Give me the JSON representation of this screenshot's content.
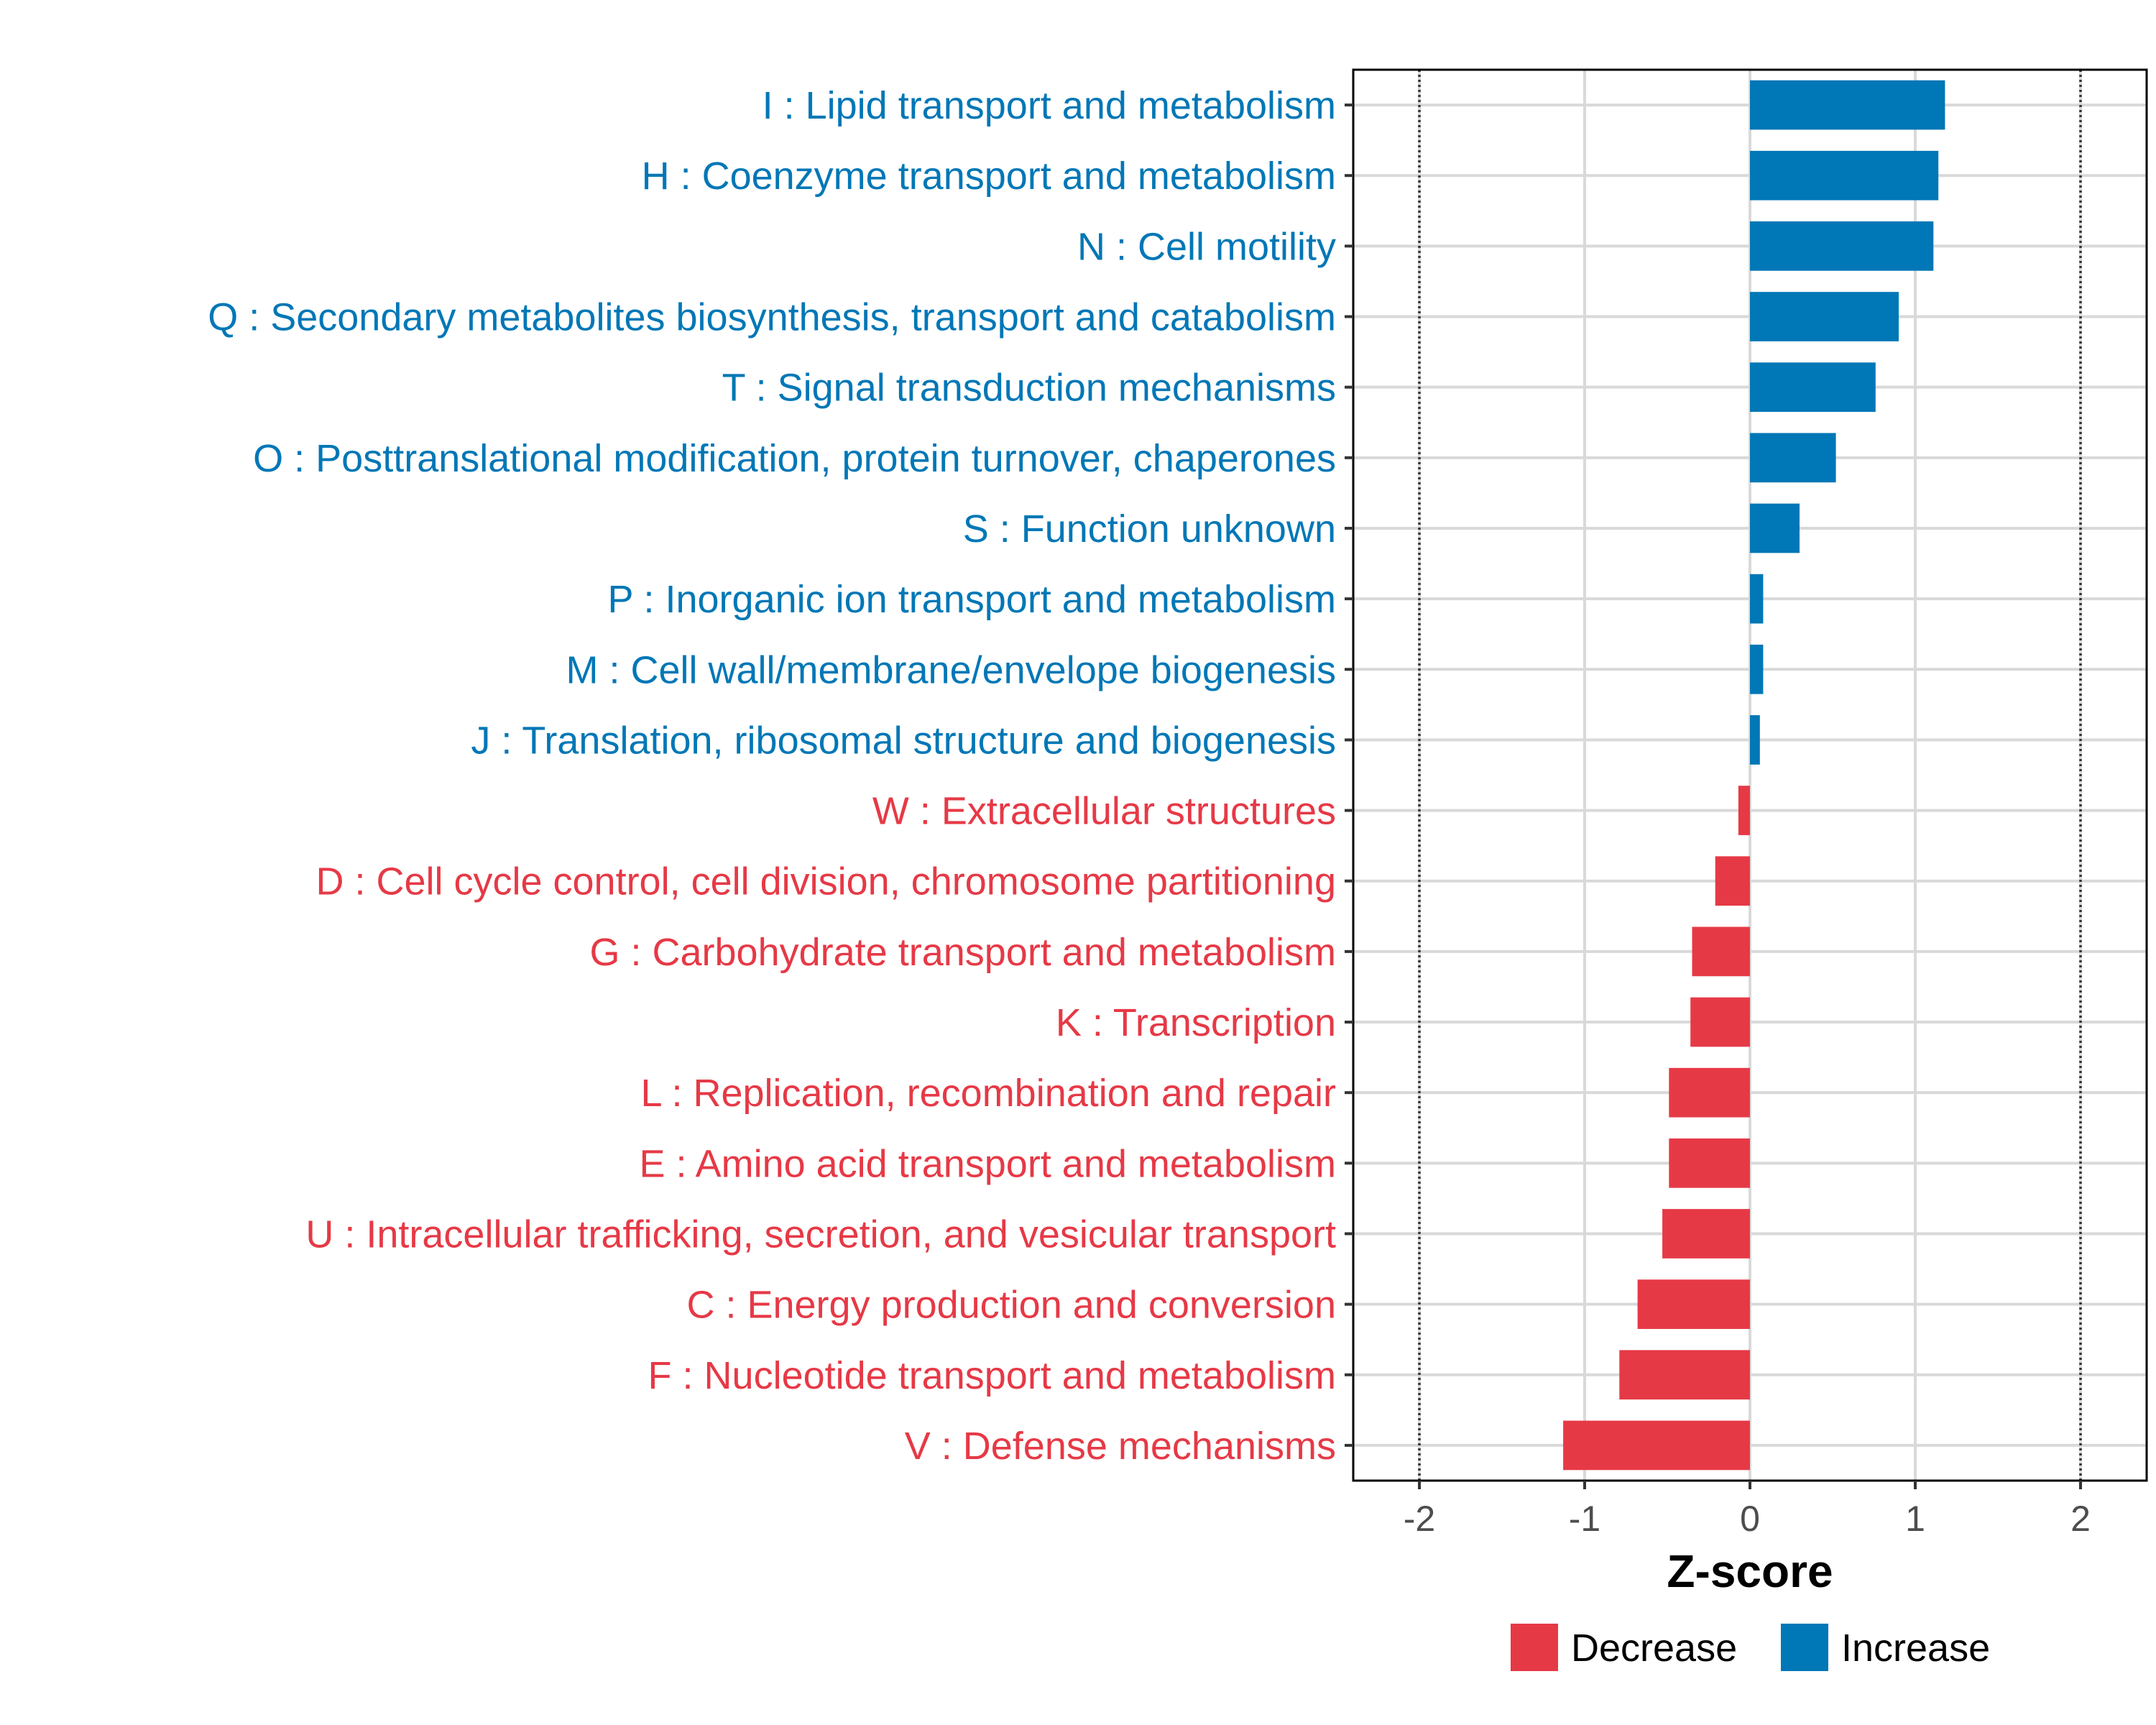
{
  "colors": {
    "decrease": "#e63946",
    "increase": "#0077b6",
    "grid": "#d9d9d9",
    "panel_border": "#000000",
    "tick_text": "#4d4d4d"
  },
  "chart_data": {
    "type": "bar",
    "orientation": "horizontal",
    "xlabel": "Z-score",
    "xlim": [
      -2.4,
      2.4
    ],
    "xticks": [
      -2,
      -1,
      0,
      1,
      2
    ],
    "xtick_labels": [
      "-2",
      "-1",
      "0",
      "1",
      "2"
    ],
    "reference_lines": [
      -2,
      2
    ],
    "grid": true,
    "legend": {
      "position": "bottom",
      "entries": [
        {
          "key": "decrease",
          "label": "Decrease"
        },
        {
          "key": "increase",
          "label": "Increase"
        }
      ]
    },
    "categories": [
      "I : Lipid transport and metabolism",
      "H : Coenzyme transport and metabolism",
      "N : Cell motility",
      "Q : Secondary metabolites biosynthesis, transport and catabolism",
      "T : Signal transduction mechanisms",
      "O : Posttranslational modification, protein turnover, chaperones",
      "S : Function unknown",
      "P : Inorganic ion transport and metabolism",
      "M : Cell wall/membrane/envelope biogenesis",
      "J : Translation, ribosomal structure and biogenesis",
      "W : Extracellular structures",
      "D : Cell cycle control, cell division, chromosome partitioning",
      "G : Carbohydrate transport and metabolism",
      "K : Transcription",
      "L : Replication, recombination and repair",
      "E : Amino acid transport and metabolism",
      "U : Intracellular trafficking, secretion, and vesicular transport",
      "C : Energy production and conversion",
      "F : Nucleotide transport and metabolism",
      "V : Defense mechanisms"
    ],
    "values": [
      1.18,
      1.14,
      1.11,
      0.9,
      0.76,
      0.52,
      0.3,
      0.08,
      0.08,
      0.06,
      -0.07,
      -0.21,
      -0.35,
      -0.36,
      -0.49,
      -0.49,
      -0.53,
      -0.68,
      -0.79,
      -1.13
    ],
    "groups": [
      "increase",
      "increase",
      "increase",
      "increase",
      "increase",
      "increase",
      "increase",
      "increase",
      "increase",
      "increase",
      "decrease",
      "decrease",
      "decrease",
      "decrease",
      "decrease",
      "decrease",
      "decrease",
      "decrease",
      "decrease",
      "decrease"
    ]
  }
}
